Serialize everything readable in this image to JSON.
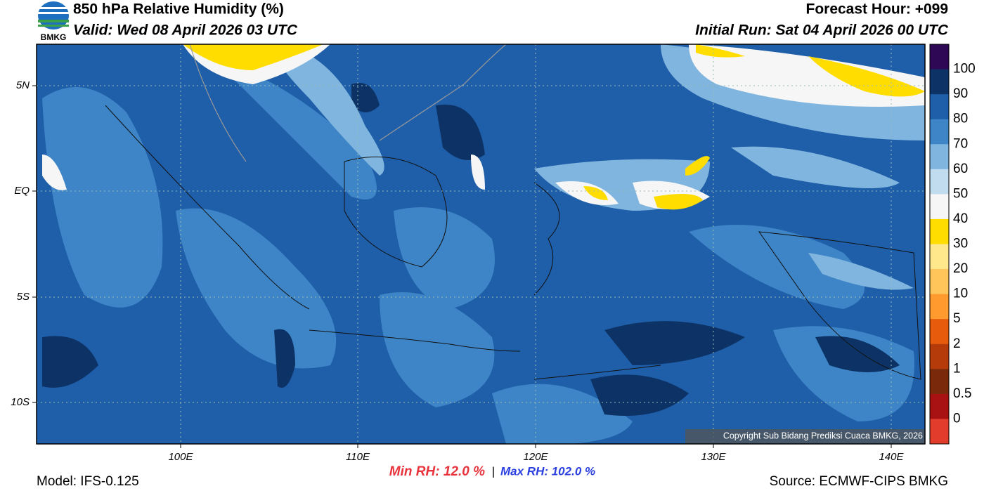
{
  "header": {
    "title": "850 hPa Relative Humidity (%)",
    "valid": "Valid: Wed 08 April 2026 03 UTC",
    "forecast_hour": "Forecast Hour: +099",
    "initial_run": "Initial Run: Sat 04 April 2026 00 UTC",
    "logo": "BMKG"
  },
  "map": {
    "lat_labels": [
      "5N",
      "EQ",
      "5S",
      "10S"
    ],
    "lon_labels": [
      "100E",
      "110E",
      "120E",
      "130E",
      "140E"
    ],
    "copyright": "Copyright Sub Bidang Prediksi Cuaca BMKG, 2026"
  },
  "colorbar": {
    "labels": [
      "100",
      "90",
      "80",
      "70",
      "60",
      "50",
      "40",
      "30",
      "20",
      "10",
      "5",
      "2",
      "1",
      "0.5",
      "0"
    ],
    "colors": [
      "#2e0854",
      "#0d3366",
      "#1f5ea8",
      "#3d85c6",
      "#7fb5de",
      "#c2dcef",
      "#f6f6f6",
      "#ffdd00",
      "#ffe88c",
      "#ffc45a",
      "#ff9a2e",
      "#e65c0c",
      "#b53c0a",
      "#7a2a0a",
      "#a91212",
      "#e23c2c"
    ]
  },
  "footer": {
    "model": "Model: IFS-0.125",
    "min_rh": "Min RH:  12.0 %",
    "separator": "|",
    "max_rh": "Max RH: 102.0 %",
    "source": "Source: ECMWF-CIPS BMKG"
  }
}
